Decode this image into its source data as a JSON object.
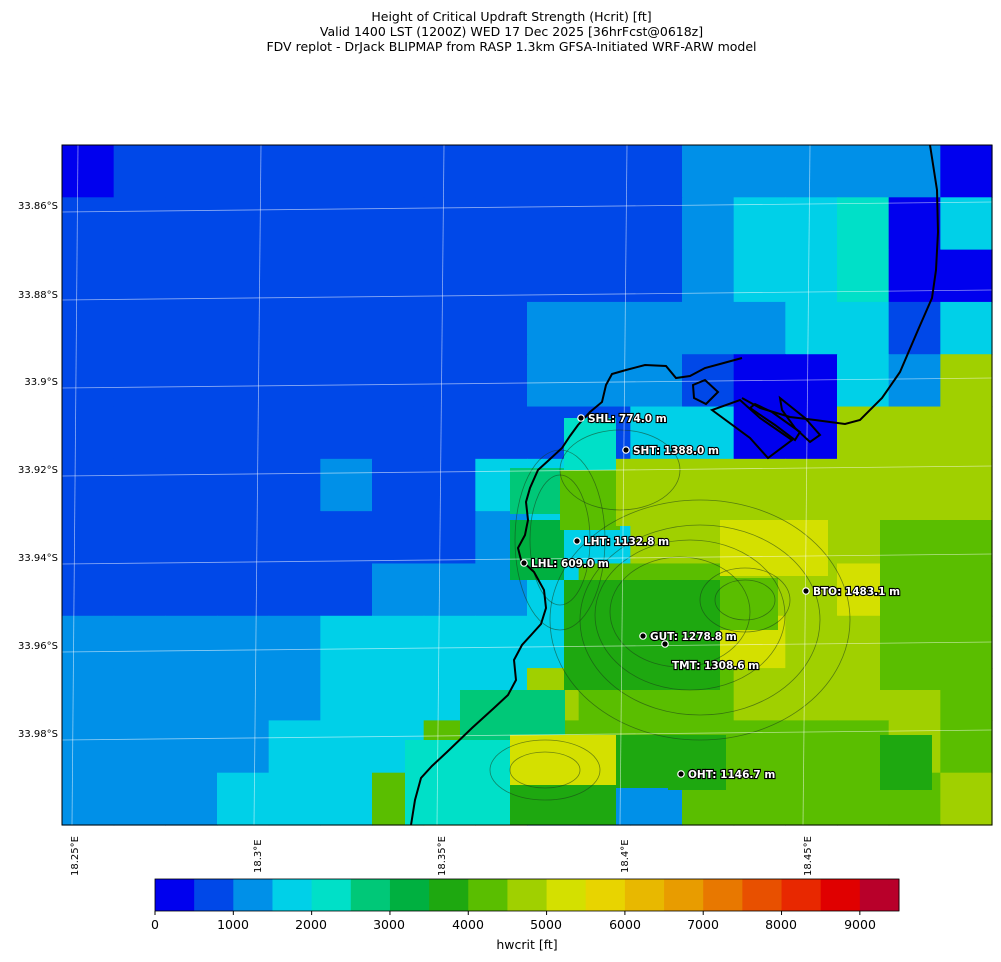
{
  "titles": {
    "line1": "Height of Critical Updraft Strength (Hcrit) [ft]",
    "line2": "Valid 1400 LST (1200Z) WED 17 Dec 2025 [36hrFcst@0618z]",
    "line3": "FDV replot - DrJack BLIPMAP from RASP 1.3km GFSA-Initiated WRF-ARW model"
  },
  "axes": {
    "lat_ticks": [
      "33.86°S",
      "33.88°S",
      "33.9°S",
      "33.92°S",
      "33.94°S",
      "33.96°S",
      "33.98°S"
    ],
    "lon_ticks": [
      "18.25°E",
      "18.3°E",
      "18.35°E",
      "18.4°E",
      "18.45°E"
    ]
  },
  "colorbar": {
    "title": "hwcrit [ft]",
    "tick_labels": [
      "0",
      "1000",
      "2000",
      "3000",
      "4000",
      "5000",
      "6000",
      "7000",
      "8000",
      "9000"
    ],
    "colors": [
      "#0000ee",
      "#0048e8",
      "#0090e8",
      "#00d0e8",
      "#00e0c8",
      "#00c878",
      "#00b040",
      "#1ea810",
      "#5abe00",
      "#a0d000",
      "#d4e000",
      "#e8d400",
      "#e8b800",
      "#e89c00",
      "#e87800",
      "#e85000",
      "#e82800",
      "#e00000",
      "#b8002a"
    ]
  },
  "stations": [
    {
      "label": "SHL: 774.0 m"
    },
    {
      "label": "SHT: 1388.0 m"
    },
    {
      "label": "LHT: 1132.8 m"
    },
    {
      "label": "LHL: 609.0 m"
    },
    {
      "label": "BTO: 1483.1 m"
    },
    {
      "label": "GUT: 1278.8 m"
    },
    {
      "label": "TMT: 1308.6 m"
    },
    {
      "label": "OHT: 1146.7 m"
    }
  ]
}
